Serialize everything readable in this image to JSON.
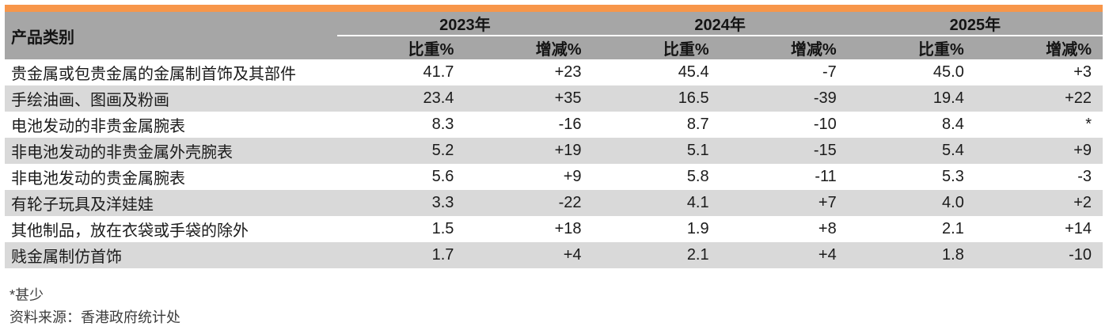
{
  "colors": {
    "accent_orange": "#F7964A",
    "header_gray": "#A6A6A6",
    "stripe_gray": "#D9D9D9",
    "text_dark": "#1B1B1B",
    "footnote_gray": "#3C3C3C"
  },
  "header": {
    "category_label": "产品类别",
    "year_groups": [
      {
        "year": "2023年",
        "share_label": "比重%",
        "change_label": "增减%"
      },
      {
        "year": "2024年",
        "share_label": "比重%",
        "change_label": "增减%"
      },
      {
        "year": "2025年",
        "share_label": "比重%",
        "change_label": "增减%"
      }
    ]
  },
  "table": {
    "rows": [
      {
        "category": "贵金属或包贵金属的金属制首饰及其部件",
        "values": [
          "41.7",
          "+23",
          "45.4",
          "-7",
          "45.0",
          "+3"
        ]
      },
      {
        "category": "手绘油画、图画及粉画",
        "values": [
          "23.4",
          "+35",
          "16.5",
          "-39",
          "19.4",
          "+22"
        ]
      },
      {
        "category": "电池发动的非贵金属腕表",
        "values": [
          "8.3",
          "-16",
          "8.7",
          "-10",
          "8.4",
          "*"
        ]
      },
      {
        "category": "非电池发动的非贵金属外壳腕表",
        "values": [
          "5.2",
          "+19",
          "5.1",
          "-15",
          "5.4",
          "+9"
        ]
      },
      {
        "category": "非电池发动的贵金属腕表",
        "values": [
          "5.6",
          "+9",
          "5.8",
          "-11",
          "5.3",
          "-3"
        ]
      },
      {
        "category": "有轮子玩具及洋娃娃",
        "values": [
          "3.3",
          "-22",
          "4.1",
          "+7",
          "4.0",
          "+2"
        ]
      },
      {
        "category": "其他制品，放在衣袋或手袋的除外",
        "values": [
          "1.5",
          "+18",
          "1.9",
          "+8",
          "2.1",
          "+14"
        ]
      },
      {
        "category": "贱金属制仿首饰",
        "values": [
          "1.7",
          "+4",
          "2.1",
          "+4",
          "1.8",
          "-10"
        ]
      }
    ]
  },
  "footnotes": {
    "asterisk_note": "*甚少",
    "source": "资料来源：香港政府统计处"
  }
}
